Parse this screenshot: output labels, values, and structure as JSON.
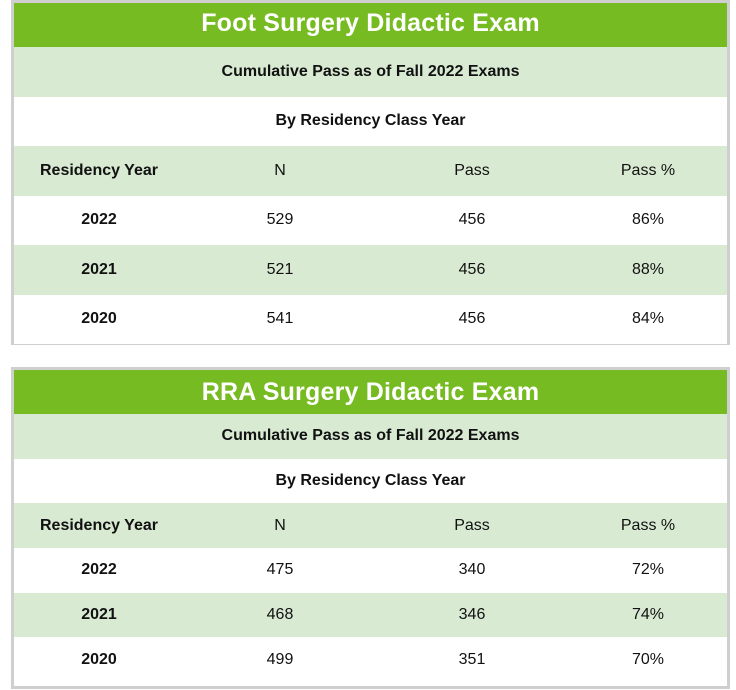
{
  "tables": [
    {
      "title": "Foot Surgery Didactic Exam",
      "subtitle": "Cumulative Pass as of Fall 2022 Exams",
      "group_label": "By Residency Class Year",
      "headers": [
        "Residency Year",
        "N",
        "Pass",
        "Pass %"
      ],
      "rows": [
        [
          "2022",
          "529",
          "456",
          "86%"
        ],
        [
          "2021",
          "521",
          "456",
          "88%"
        ],
        [
          "2020",
          "541",
          "456",
          "84%"
        ]
      ]
    },
    {
      "title": "RRA Surgery Didactic Exam",
      "subtitle": "Cumulative Pass as of Fall 2022 Exams",
      "group_label": "By Residency Class Year",
      "headers": [
        "Residency Year",
        "N",
        "Pass",
        "Pass %"
      ],
      "rows": [
        [
          "2022",
          "475",
          "340",
          "72%"
        ],
        [
          "2021",
          "468",
          "346",
          "74%"
        ],
        [
          "2020",
          "499",
          "351",
          "70%"
        ]
      ]
    }
  ],
  "colors": {
    "title_bar": "#77bb22",
    "band_light": "#d9ead3",
    "frame_border": "#cfcfcf"
  }
}
